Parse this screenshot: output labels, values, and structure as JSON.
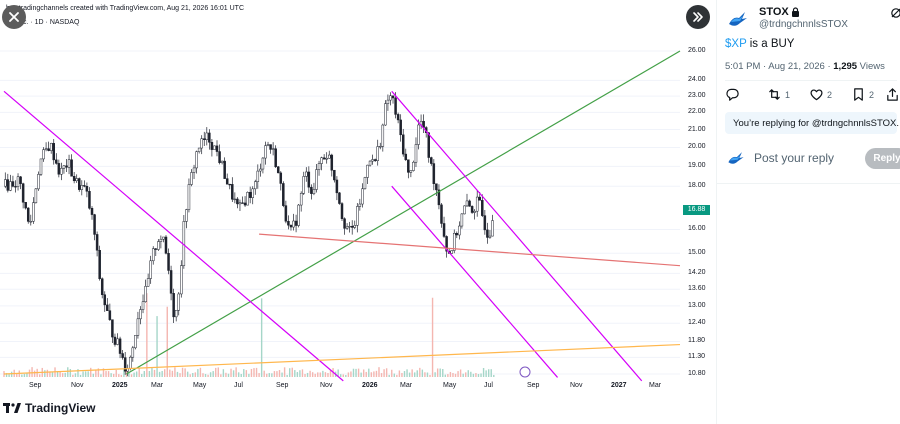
{
  "media": {
    "header_text": "b… tradingchannels created with TradingView.com, Aug 21, 2026 16:01 UTC",
    "symbol_text": "XP Inc. · 1D · NASDAQ",
    "brand": "TradingView",
    "close_icon": "close-icon",
    "next_icon": "double-chevron-right-icon"
  },
  "chart_data": {
    "type": "candlestick",
    "symbol": "XP",
    "interval": "1D",
    "exchange": "NASDAQ",
    "price_axis": [
      "26.00",
      "24.00",
      "23.00",
      "22.00",
      "21.00",
      "20.00",
      "19.00",
      "18.00",
      "16.00",
      "15.00",
      "14.20",
      "13.60",
      "13.00",
      "12.40",
      "11.80",
      "11.30",
      "10.80"
    ],
    "last_price": "16.88",
    "time_axis": [
      "Sep",
      "Nov",
      "2025",
      "Mar",
      "May",
      "Jul",
      "Sep",
      "Nov",
      "2026",
      "Mar",
      "May",
      "Jul",
      "Sep",
      "Nov",
      "2027",
      "Mar"
    ],
    "year_labels": [
      "2025",
      "2026",
      "2027"
    ],
    "price_scale": "log",
    "price_path": [
      [
        0,
        18.0
      ],
      [
        6,
        18.3
      ],
      [
        10,
        16.0
      ],
      [
        14,
        19.2
      ],
      [
        18,
        20.2
      ],
      [
        22,
        18.6
      ],
      [
        25,
        19.2
      ],
      [
        28,
        18.2
      ],
      [
        32,
        17.8
      ],
      [
        35,
        16.2
      ],
      [
        38,
        13.6
      ],
      [
        42,
        12.2
      ],
      [
        45,
        11.6
      ],
      [
        48,
        10.95
      ],
      [
        50,
        11.4
      ],
      [
        53,
        12.9
      ],
      [
        56,
        13.6
      ],
      [
        58,
        14.8
      ],
      [
        61,
        15.8
      ],
      [
        63,
        15.3
      ],
      [
        65,
        14.0
      ],
      [
        67,
        12.4
      ],
      [
        69,
        14.0
      ],
      [
        71,
        16.8
      ],
      [
        73,
        18.2
      ],
      [
        76,
        20.0
      ],
      [
        80,
        20.6
      ],
      [
        84,
        19.6
      ],
      [
        88,
        18.0
      ],
      [
        92,
        16.8
      ],
      [
        95,
        17.5
      ],
      [
        98,
        17.8
      ],
      [
        101,
        19.4
      ],
      [
        103,
        20.3
      ],
      [
        106,
        19.6
      ],
      [
        109,
        17.6
      ],
      [
        112,
        15.7
      ],
      [
        115,
        16.6
      ],
      [
        118,
        18.7
      ],
      [
        121,
        17.7
      ],
      [
        124,
        19.4
      ],
      [
        127,
        19.7
      ],
      [
        130,
        18.2
      ],
      [
        133,
        16.4
      ],
      [
        136,
        15.8
      ],
      [
        138,
        16.5
      ],
      [
        141,
        18.0
      ],
      [
        143,
        19.7
      ],
      [
        145,
        19.0
      ],
      [
        148,
        20.7
      ],
      [
        150,
        22.7
      ],
      [
        152,
        23.0
      ],
      [
        154,
        21.6
      ],
      [
        157,
        19.6
      ],
      [
        159,
        18.2
      ],
      [
        161,
        19.9
      ],
      [
        163,
        21.6
      ],
      [
        165,
        20.9
      ],
      [
        167,
        19.2
      ],
      [
        170,
        17.6
      ],
      [
        172,
        16.1
      ],
      [
        174,
        14.9
      ],
      [
        176,
        15.4
      ],
      [
        178,
        16.1
      ],
      [
        181,
        17.1
      ],
      [
        184,
        16.9
      ],
      [
        186,
        17.3
      ],
      [
        188,
        16.4
      ],
      [
        190,
        15.7
      ],
      [
        192,
        16.88
      ]
    ],
    "price_range_lines": [
      {
        "name": "green-uptrend",
        "color": "#43a047",
        "start": [
          48,
          10.8
        ],
        "end": [
          265,
          26.0
        ]
      },
      {
        "name": "magenta-downtrend-long",
        "color": "#d500f9",
        "start": [
          0,
          23.3
        ],
        "end": [
          133,
          10.6
        ]
      },
      {
        "name": "magenta-channel-upper",
        "color": "#d500f9",
        "start": [
          152,
          23.3
        ],
        "end": [
          250,
          10.6
        ]
      },
      {
        "name": "magenta-channel-lower",
        "color": "#d500f9",
        "start": [
          152,
          18.0
        ],
        "end": [
          217,
          10.7
        ]
      },
      {
        "name": "red-horizontal",
        "color": "#e57373",
        "start": [
          100,
          15.8
        ],
        "end": [
          265,
          14.5
        ]
      },
      {
        "name": "orange-support",
        "color": "#ffb74d",
        "start": [
          0,
          10.8
        ],
        "end": [
          265,
          11.7
        ]
      }
    ],
    "volume_bars": true,
    "grid": true
  },
  "tweet": {
    "display_name": "STOX",
    "handle": "@trdngchnnlsSTOX",
    "cashtag": "$XP",
    "text_rest": " is a BUY",
    "time": "5:01 PM · Aug 21, 2026 · ",
    "views_count": "1,295",
    "views_label": " Views",
    "replies": "",
    "retweets": "1",
    "likes": "2",
    "bookmarks": "2",
    "replying_to": "You’re replying for @trdngchnnlsSTOX.",
    "reply_placeholder": "Post your reply",
    "reply_button": "Reply"
  }
}
